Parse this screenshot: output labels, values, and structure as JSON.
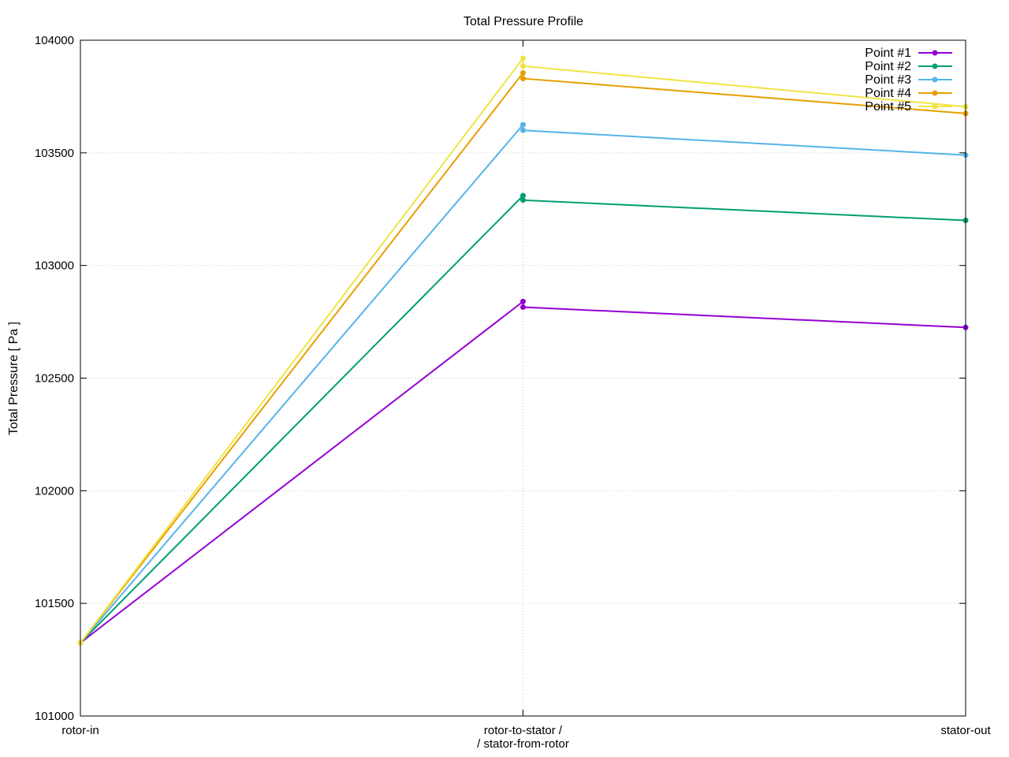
{
  "chart_data": {
    "type": "line",
    "title": "Total Pressure Profile",
    "xlabel": "",
    "ylabel": "Total Pressure [ Pa ]",
    "categories": [
      [
        "rotor-in"
      ],
      [
        "rotor-to-stator /",
        "/ stator-from-rotor"
      ],
      [
        "stator-out"
      ]
    ],
    "ylim": [
      101000,
      104000
    ],
    "yticks": [
      101000,
      101500,
      102000,
      102500,
      103000,
      103500,
      104000
    ],
    "grid": true,
    "legend_position": "top-right",
    "series": [
      {
        "name": "Point #1",
        "color": "#9400d3",
        "points": [
          {
            "x": 0,
            "y": 101325
          },
          {
            "x": 1,
            "y": 102840
          },
          {
            "x": 1,
            "y": 102815
          },
          {
            "x": 2,
            "y": 102725
          }
        ]
      },
      {
        "name": "Point #2",
        "color": "#009e73",
        "points": [
          {
            "x": 0,
            "y": 101325
          },
          {
            "x": 1,
            "y": 103310
          },
          {
            "x": 1,
            "y": 103290
          },
          {
            "x": 2,
            "y": 103200
          }
        ]
      },
      {
        "name": "Point #3",
        "color": "#56b4e9",
        "points": [
          {
            "x": 0,
            "y": 101325
          },
          {
            "x": 1,
            "y": 103625
          },
          {
            "x": 1,
            "y": 103600
          },
          {
            "x": 2,
            "y": 103490
          }
        ]
      },
      {
        "name": "Point #4",
        "color": "#e69f00",
        "points": [
          {
            "x": 0,
            "y": 101325
          },
          {
            "x": 1,
            "y": 103855
          },
          {
            "x": 1,
            "y": 103830
          },
          {
            "x": 2,
            "y": 103675
          }
        ]
      },
      {
        "name": "Point #5",
        "color": "#f0e442",
        "points": [
          {
            "x": 0,
            "y": 101325
          },
          {
            "x": 1,
            "y": 103920
          },
          {
            "x": 1,
            "y": 103885
          },
          {
            "x": 2,
            "y": 103705
          }
        ]
      }
    ]
  }
}
